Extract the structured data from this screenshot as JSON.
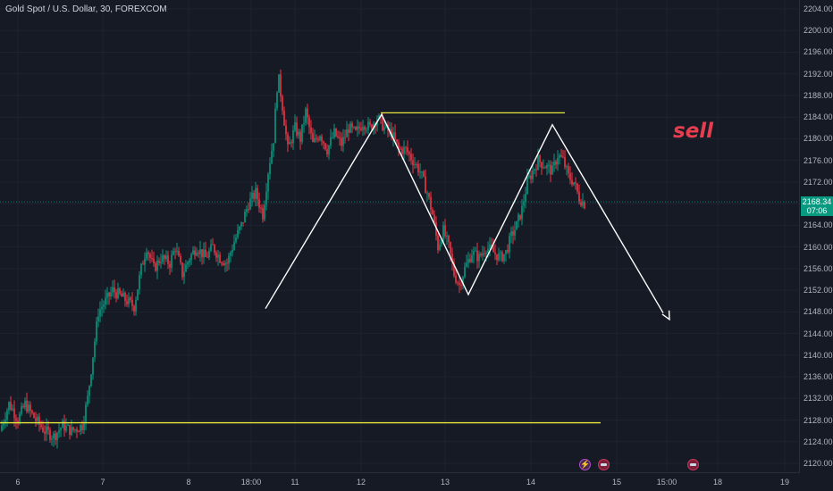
{
  "header": {
    "symbol_title": "Gold Spot / U.S. Dollar, 30, FOREXCOM"
  },
  "annotation": {
    "sell_text": "sell"
  },
  "price_label": {
    "price": "2168.34",
    "countdown": "07:06",
    "color": "#089981"
  },
  "colors": {
    "background": "#161a25",
    "up_candle": "#089981",
    "down_candle": "#f23645",
    "horizontal_lines": "#e8e83a",
    "drawing": "#ffffff"
  },
  "event_icons": [
    {
      "name": "lightning-icon"
    },
    {
      "name": "us-flag-icon"
    },
    {
      "name": "us-flag-icon"
    }
  ],
  "chart_data": {
    "type": "candlestick",
    "y_axis": {
      "ticks": [
        "2204.00",
        "2200.00",
        "2196.00",
        "2192.00",
        "2188.00",
        "2184.00",
        "2180.00",
        "2176.00",
        "2172.00",
        "2168.00",
        "2164.00",
        "2160.00",
        "2156.00",
        "2152.00",
        "2148.00",
        "2144.00",
        "2140.00",
        "2136.00",
        "2132.00",
        "2128.00",
        "2124.00",
        "2120.00"
      ],
      "range": [
        2119,
        2205
      ]
    },
    "x_axis": {
      "ticks": [
        "6",
        "7",
        "8",
        "18:00",
        "11",
        "12",
        "13",
        "14",
        "15",
        "15:00",
        "18",
        "19"
      ]
    },
    "price_path": [
      [
        0,
        2126
      ],
      [
        10,
        2131
      ],
      [
        14,
        2130
      ],
      [
        20,
        2128
      ],
      [
        28,
        2131
      ],
      [
        40,
        2128
      ],
      [
        50,
        2126
      ],
      [
        60,
        2125
      ],
      [
        70,
        2127
      ],
      [
        80,
        2126
      ],
      [
        92,
        2127
      ],
      [
        98,
        2132
      ],
      [
        104,
        2140
      ],
      [
        110,
        2148
      ],
      [
        118,
        2150
      ],
      [
        126,
        2152
      ],
      [
        134,
        2151
      ],
      [
        142,
        2150
      ],
      [
        150,
        2149
      ],
      [
        158,
        2156
      ],
      [
        164,
        2160
      ],
      [
        172,
        2156
      ],
      [
        180,
        2158
      ],
      [
        190,
        2157
      ],
      [
        196,
        2160
      ],
      [
        204,
        2155
      ],
      [
        212,
        2158
      ],
      [
        220,
        2160
      ],
      [
        230,
        2158
      ],
      [
        238,
        2160
      ],
      [
        246,
        2158
      ],
      [
        254,
        2157
      ],
      [
        262,
        2161
      ],
      [
        270,
        2164
      ],
      [
        278,
        2168
      ],
      [
        286,
        2170
      ],
      [
        294,
        2166
      ],
      [
        300,
        2174
      ],
      [
        306,
        2180
      ],
      [
        311,
        2192
      ],
      [
        316,
        2186
      ],
      [
        322,
        2178
      ],
      [
        330,
        2182
      ],
      [
        336,
        2180
      ],
      [
        342,
        2185
      ],
      [
        350,
        2179
      ],
      [
        358,
        2181
      ],
      [
        366,
        2178
      ],
      [
        374,
        2181
      ],
      [
        382,
        2179
      ],
      [
        390,
        2182
      ],
      [
        398,
        2181
      ],
      [
        406,
        2183
      ],
      [
        414,
        2182
      ],
      [
        422,
        2184
      ],
      [
        430,
        2182
      ],
      [
        438,
        2181
      ],
      [
        446,
        2178
      ],
      [
        454,
        2178
      ],
      [
        462,
        2176
      ],
      [
        470,
        2174
      ],
      [
        478,
        2170
      ],
      [
        484,
        2166
      ],
      [
        490,
        2160
      ],
      [
        496,
        2163
      ],
      [
        502,
        2160
      ],
      [
        508,
        2155
      ],
      [
        514,
        2153
      ],
      [
        520,
        2156
      ],
      [
        528,
        2159
      ],
      [
        536,
        2158
      ],
      [
        544,
        2160
      ],
      [
        552,
        2159
      ],
      [
        560,
        2158
      ],
      [
        566,
        2159
      ],
      [
        572,
        2162
      ],
      [
        578,
        2164
      ],
      [
        584,
        2167
      ],
      [
        590,
        2172
      ],
      [
        596,
        2174
      ],
      [
        602,
        2176
      ],
      [
        610,
        2175
      ],
      [
        618,
        2174
      ],
      [
        624,
        2177
      ],
      [
        630,
        2176
      ],
      [
        636,
        2173
      ],
      [
        642,
        2172
      ],
      [
        648,
        2169
      ],
      [
        654,
        2168
      ]
    ],
    "horizontal_lines": [
      {
        "price": 2184.8,
        "x_from": 426,
        "x_to": 632
      },
      {
        "price": 2127.5,
        "x_from": 0,
        "x_to": 672
      }
    ],
    "pattern_line": [
      [
        297,
        2148.6
      ],
      [
        427,
        2184.5
      ],
      [
        524,
        2151.2
      ],
      [
        618,
        2182.6
      ],
      [
        742,
        2147.8
      ]
    ],
    "projection_arrow": {
      "from": [
        686,
        2166
      ],
      "to": [
        749,
        2146.6
      ]
    }
  }
}
